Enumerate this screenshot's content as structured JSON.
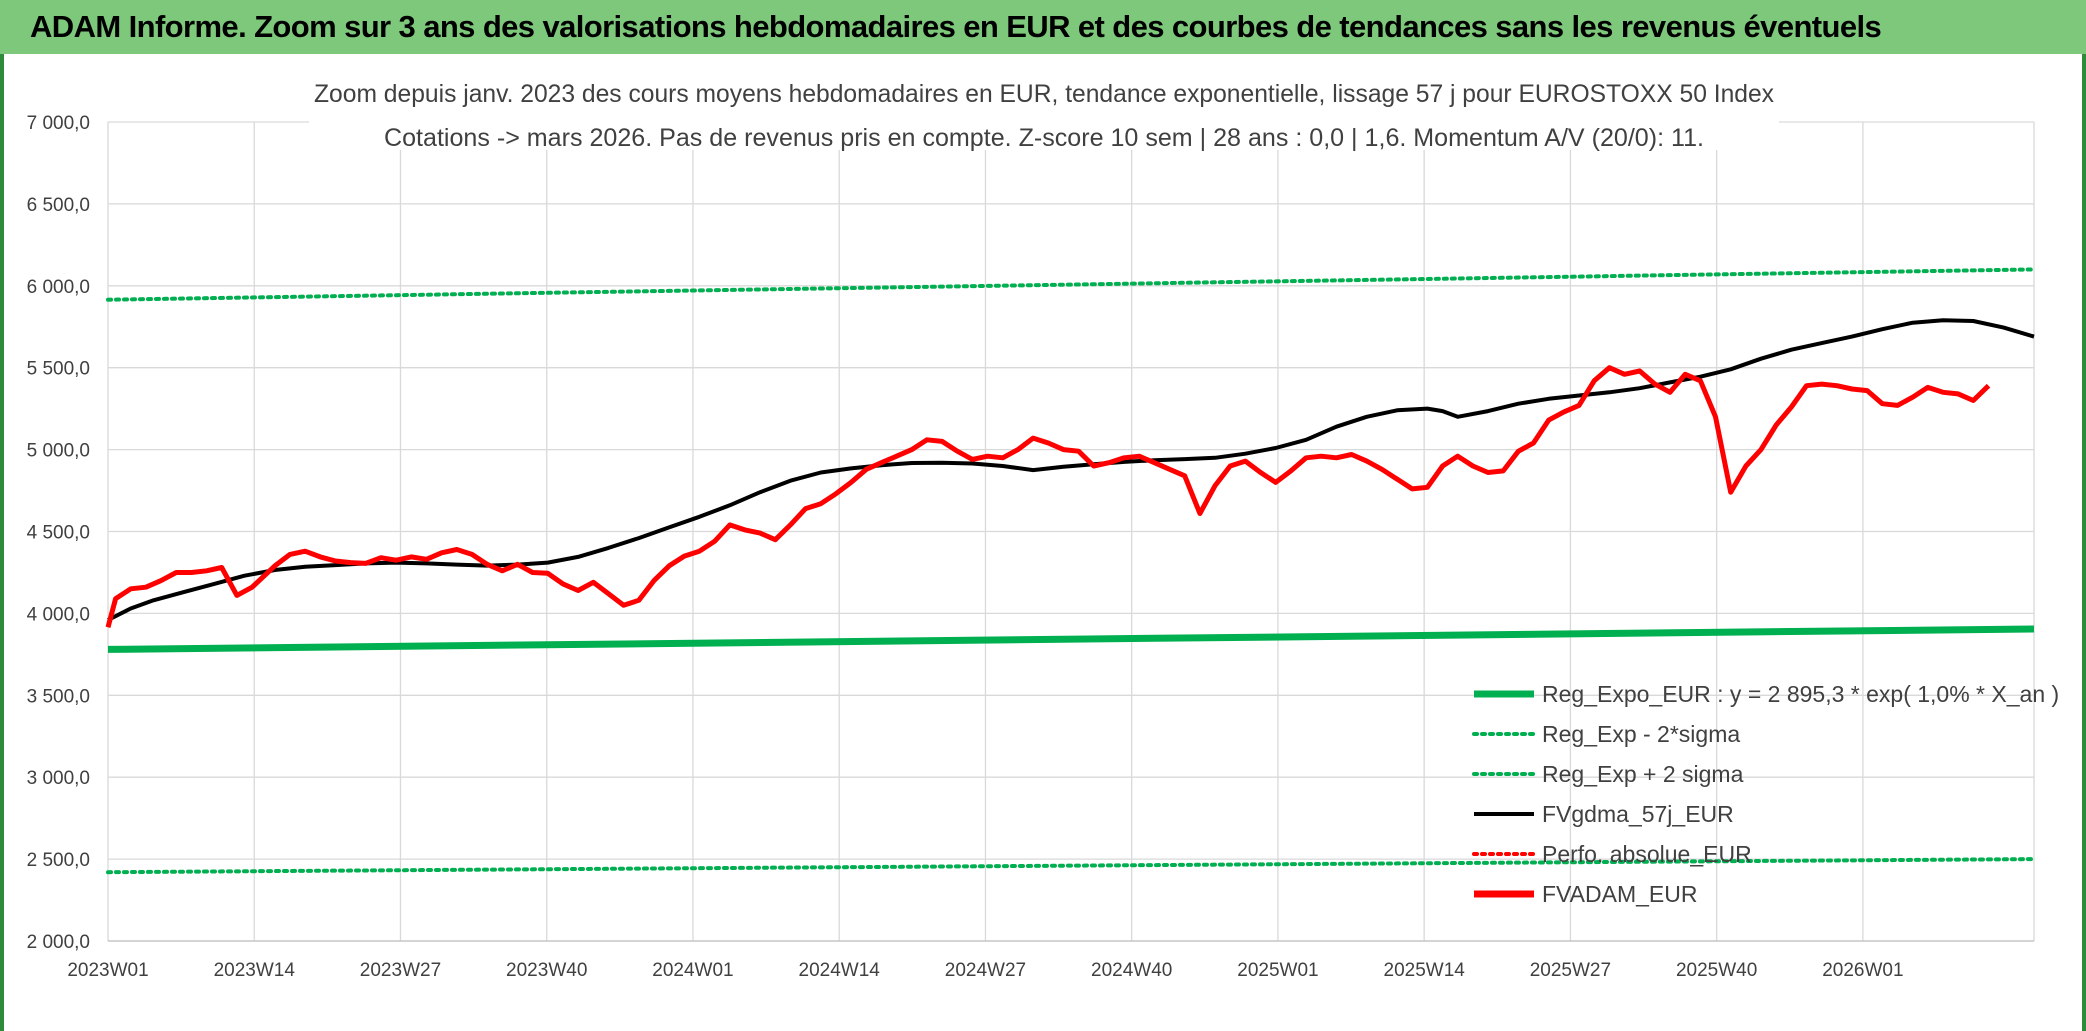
{
  "header": {
    "title": "ADAM Informe. Zoom sur 3 ans des valorisations hebdomadaires en EUR et des courbes de tendances sans les revenus éventuels"
  },
  "chart_data": {
    "type": "line",
    "title": "Zoom depuis janv. 2023 des cours moyens hebdomadaires en EUR, tendance exponentielle, lissage 57 j pour EUROSTOXX 50 Index",
    "subtitle": "Cotations -> mars 2026. Pas de revenus pris en compte. Z-score 10 sem | 28 ans : 0,0 | 1,6. Momentum A/V (20/0): 11.",
    "xlabel": "",
    "ylabel": "",
    "ylim": [
      2000,
      7000
    ],
    "yticks": [
      "2 000,0",
      "2 500,0",
      "3 000,0",
      "3 500,0",
      "4 000,0",
      "4 500,0",
      "5 000,0",
      "5 500,0",
      "6 000,0",
      "6 500,0",
      "7 000,0"
    ],
    "xticks": [
      "2023W01",
      "2023W14",
      "2023W27",
      "2023W40",
      "2024W01",
      "2024W14",
      "2024W27",
      "2024W40",
      "2025W01",
      "2025W14",
      "2025W27",
      "2025W40",
      "2026W01"
    ],
    "x_weeks": 170,
    "grid": true,
    "legend_position": "bottom-right",
    "series": [
      {
        "name": "Reg_Expo_EUR : y = 2 895,3 * exp( 1,0% *  X_an )",
        "color": "#00b050",
        "style": "solid-thick",
        "start": 3780,
        "end": 3905
      },
      {
        "name": "Reg_Exp - 2*sigma",
        "color": "#00b050",
        "style": "dotted",
        "start": 2420,
        "end": 2500
      },
      {
        "name": "Reg_Exp + 2 sigma",
        "color": "#00b050",
        "style": "dotted",
        "start": 5915,
        "end": 6100
      },
      {
        "name": "FVgdma_57j_EUR",
        "color": "#000000",
        "style": "solid",
        "values": [
          [
            0,
            3960
          ],
          [
            3,
            4030
          ],
          [
            6,
            4080
          ],
          [
            10,
            4130
          ],
          [
            14,
            4180
          ],
          [
            18,
            4230
          ],
          [
            22,
            4265
          ],
          [
            26,
            4285
          ],
          [
            30,
            4295
          ],
          [
            34,
            4305
          ],
          [
            38,
            4310
          ],
          [
            42,
            4305
          ],
          [
            46,
            4298
          ],
          [
            50,
            4292
          ],
          [
            54,
            4298
          ],
          [
            58,
            4310
          ],
          [
            62,
            4345
          ],
          [
            66,
            4400
          ],
          [
            70,
            4460
          ],
          [
            74,
            4525
          ],
          [
            78,
            4590
          ],
          [
            82,
            4660
          ],
          [
            86,
            4740
          ],
          [
            90,
            4810
          ],
          [
            94,
            4860
          ],
          [
            98,
            4885
          ],
          [
            102,
            4905
          ],
          [
            106,
            4918
          ],
          [
            110,
            4920
          ],
          [
            114,
            4915
          ],
          [
            118,
            4900
          ],
          [
            122,
            4875
          ],
          [
            126,
            4895
          ],
          [
            130,
            4910
          ],
          [
            134,
            4925
          ],
          [
            138,
            4935
          ],
          [
            142,
            4942
          ],
          [
            146,
            4950
          ],
          [
            150,
            4975
          ],
          [
            154,
            5010
          ],
          [
            158,
            5060
          ],
          [
            162,
            5140
          ],
          [
            166,
            5200
          ],
          [
            170,
            5240
          ],
          [
            174,
            5250
          ],
          [
            176,
            5235
          ],
          [
            178,
            5200
          ],
          [
            182,
            5235
          ],
          [
            186,
            5280
          ],
          [
            190,
            5310
          ],
          [
            194,
            5330
          ],
          [
            198,
            5350
          ],
          [
            202,
            5375
          ],
          [
            206,
            5410
          ],
          [
            210,
            5445
          ],
          [
            214,
            5490
          ],
          [
            218,
            5555
          ],
          [
            222,
            5610
          ],
          [
            226,
            5650
          ],
          [
            230,
            5690
          ],
          [
            234,
            5735
          ],
          [
            238,
            5775
          ],
          [
            242,
            5790
          ],
          [
            246,
            5785
          ],
          [
            250,
            5745
          ],
          [
            254,
            5690
          ]
        ]
      },
      {
        "name": "Perfo. absolue_EUR",
        "color": "#ff0000",
        "style": "dotted",
        "values": []
      },
      {
        "name": "FVADAM_EUR",
        "color": "#ff0000",
        "style": "solid-thick",
        "values": [
          [
            0,
            3915
          ],
          [
            1,
            4090
          ],
          [
            3,
            4150
          ],
          [
            5,
            4160
          ],
          [
            7,
            4200
          ],
          [
            9,
            4250
          ],
          [
            11,
            4250
          ],
          [
            13,
            4260
          ],
          [
            15,
            4280
          ],
          [
            17,
            4110
          ],
          [
            19,
            4160
          ],
          [
            22,
            4290
          ],
          [
            24,
            4360
          ],
          [
            26,
            4380
          ],
          [
            28,
            4345
          ],
          [
            30,
            4320
          ],
          [
            32,
            4310
          ],
          [
            34,
            4305
          ],
          [
            36,
            4340
          ],
          [
            38,
            4325
          ],
          [
            40,
            4345
          ],
          [
            42,
            4330
          ],
          [
            44,
            4370
          ],
          [
            46,
            4390
          ],
          [
            48,
            4360
          ],
          [
            50,
            4300
          ],
          [
            52,
            4260
          ],
          [
            54,
            4300
          ],
          [
            56,
            4250
          ],
          [
            58,
            4245
          ],
          [
            60,
            4180
          ],
          [
            62,
            4140
          ],
          [
            64,
            4190
          ],
          [
            66,
            4120
          ],
          [
            68,
            4050
          ],
          [
            70,
            4080
          ],
          [
            72,
            4200
          ],
          [
            74,
            4290
          ],
          [
            76,
            4350
          ],
          [
            78,
            4380
          ],
          [
            80,
            4440
          ],
          [
            82,
            4540
          ],
          [
            84,
            4510
          ],
          [
            86,
            4490
          ],
          [
            88,
            4450
          ],
          [
            90,
            4540
          ],
          [
            92,
            4640
          ],
          [
            94,
            4670
          ],
          [
            96,
            4730
          ],
          [
            98,
            4800
          ],
          [
            100,
            4880
          ],
          [
            102,
            4920
          ],
          [
            104,
            4960
          ],
          [
            106,
            5000
          ],
          [
            108,
            5060
          ],
          [
            110,
            5050
          ],
          [
            112,
            4990
          ],
          [
            114,
            4940
          ],
          [
            116,
            4960
          ],
          [
            118,
            4950
          ],
          [
            120,
            5000
          ],
          [
            122,
            5070
          ],
          [
            124,
            5040
          ],
          [
            126,
            5000
          ],
          [
            128,
            4990
          ],
          [
            130,
            4900
          ],
          [
            132,
            4920
          ],
          [
            134,
            4950
          ],
          [
            136,
            4960
          ],
          [
            138,
            4920
          ],
          [
            140,
            4880
          ],
          [
            142,
            4840
          ],
          [
            144,
            4610
          ],
          [
            146,
            4780
          ],
          [
            148,
            4900
          ],
          [
            150,
            4930
          ],
          [
            152,
            4860
          ],
          [
            154,
            4800
          ],
          [
            156,
            4870
          ],
          [
            158,
            4950
          ],
          [
            160,
            4960
          ],
          [
            162,
            4950
          ],
          [
            164,
            4970
          ],
          [
            166,
            4930
          ],
          [
            168,
            4880
          ],
          [
            170,
            4820
          ],
          [
            172,
            4760
          ],
          [
            174,
            4770
          ],
          [
            176,
            4900
          ],
          [
            178,
            4960
          ],
          [
            180,
            4900
          ],
          [
            182,
            4860
          ],
          [
            184,
            4870
          ],
          [
            186,
            4990
          ],
          [
            188,
            5040
          ],
          [
            190,
            5180
          ],
          [
            192,
            5230
          ],
          [
            194,
            5270
          ],
          [
            196,
            5420
          ],
          [
            198,
            5500
          ],
          [
            200,
            5460
          ],
          [
            202,
            5480
          ],
          [
            204,
            5400
          ],
          [
            206,
            5350
          ],
          [
            208,
            5460
          ],
          [
            210,
            5420
          ],
          [
            212,
            5200
          ],
          [
            214,
            4740
          ],
          [
            216,
            4900
          ],
          [
            218,
            5000
          ],
          [
            220,
            5150
          ],
          [
            222,
            5260
          ],
          [
            224,
            5390
          ],
          [
            226,
            5400
          ],
          [
            228,
            5390
          ],
          [
            230,
            5370
          ],
          [
            232,
            5360
          ],
          [
            234,
            5280
          ],
          [
            236,
            5270
          ],
          [
            238,
            5320
          ],
          [
            240,
            5380
          ],
          [
            242,
            5350
          ],
          [
            244,
            5340
          ],
          [
            246,
            5300
          ],
          [
            248,
            5390
          ]
        ]
      }
    ]
  }
}
